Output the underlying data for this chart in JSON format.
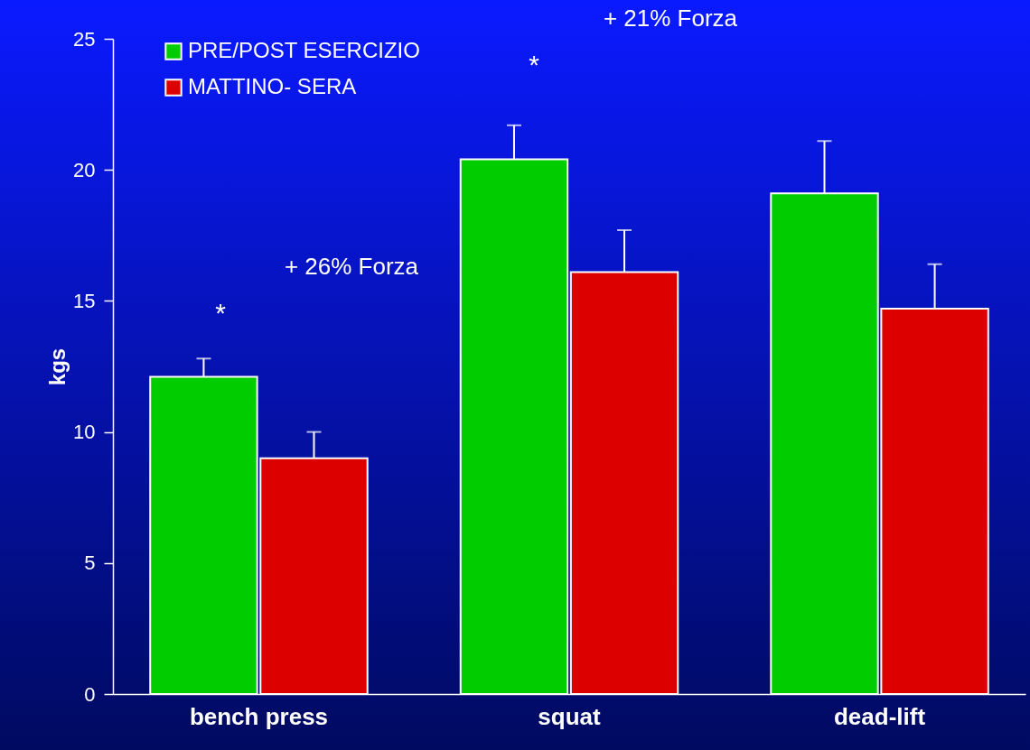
{
  "chart_data": {
    "type": "bar",
    "ylabel": "kgs",
    "categories": [
      "bench press",
      "squat",
      "dead-lift"
    ],
    "ylim": [
      0,
      25
    ],
    "yticks": [
      0,
      5,
      10,
      15,
      20,
      25
    ],
    "legend": "top left",
    "series": [
      {
        "name": "PRE/POST ESERCIZIO",
        "color": "#00cc00",
        "values": [
          12.1,
          20.4,
          19.1
        ],
        "errors": [
          [
            12.1,
            12.8
          ],
          [
            20.4,
            21.7
          ],
          [
            19.1,
            21.1
          ]
        ]
      },
      {
        "name": "MATTINO- SERA",
        "color": "#dd0000",
        "values": [
          9.0,
          16.1,
          14.7
        ],
        "errors": [
          [
            9.0,
            10.0
          ],
          [
            16.1,
            17.7
          ],
          [
            14.7,
            16.4
          ]
        ]
      }
    ],
    "annotations": [
      "*",
      "+ 26% Forza",
      "*",
      "+ 21% Forza"
    ]
  }
}
